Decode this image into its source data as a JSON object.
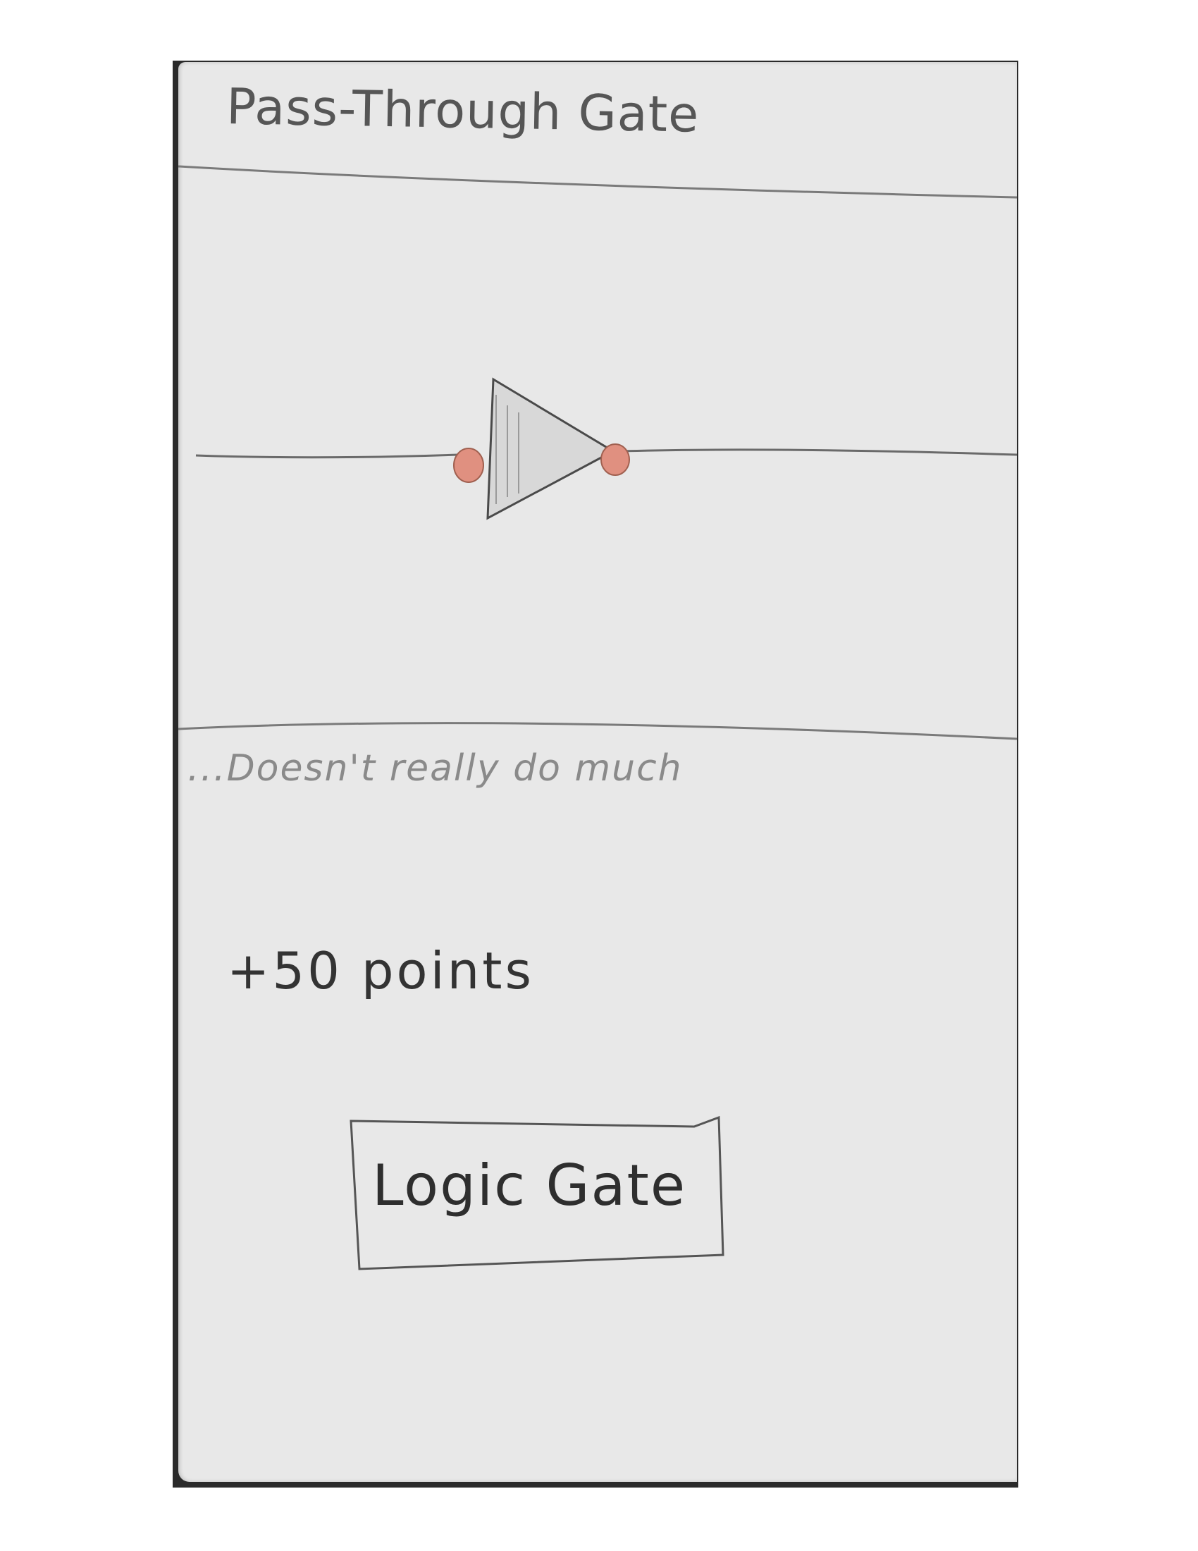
{
  "card": {
    "title": "Pass-Through Gate",
    "description": "...Doesn't really do much",
    "points": "+50 points",
    "button_label": "Logic Gate"
  },
  "diagram": {
    "gate_icon": "buffer-gate-icon",
    "pin_color": "#e09080"
  },
  "colors": {
    "paper": "#e8e8e8",
    "pencil": "#6a6a6a",
    "pin": "#e09080"
  }
}
